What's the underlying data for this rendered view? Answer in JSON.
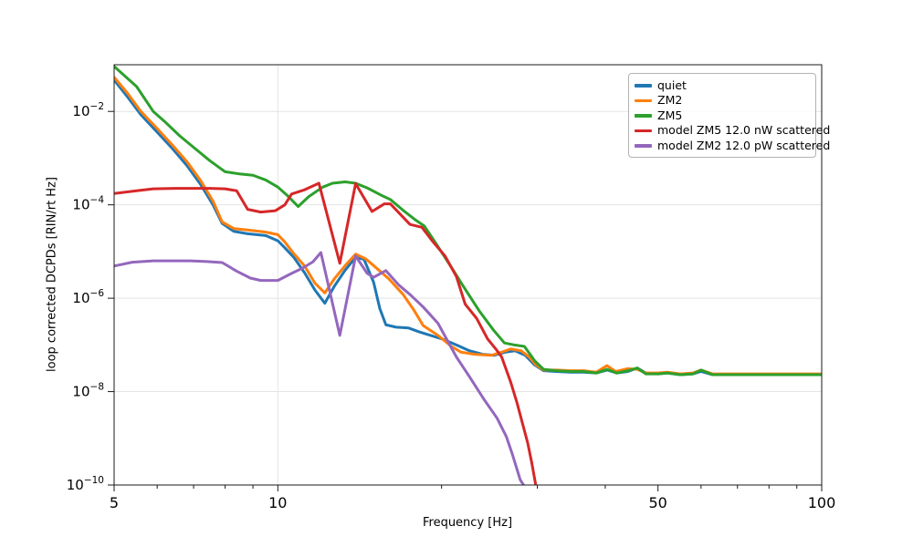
{
  "figure": {
    "xlabel": "Frequency [Hz]",
    "ylabel": "loop corrected DCPDs [RIN/rt Hz]"
  },
  "chart_data": {
    "type": "line",
    "title": "",
    "xlabel": "Frequency [Hz]",
    "ylabel": "loop corrected DCPDs [RIN/rt Hz]",
    "x_scale": "log",
    "y_scale": "log",
    "xlim": [
      5,
      100
    ],
    "ylim": [
      1e-10,
      0.1
    ],
    "x_major_ticks": [
      5,
      10,
      50,
      100
    ],
    "x_minor_ticks": [
      6,
      7,
      8,
      9,
      20,
      30,
      40,
      60,
      70,
      80,
      90
    ],
    "y_ticks": [
      {
        "base": "10",
        "exp": "−2",
        "value": 0.01
      },
      {
        "base": "10",
        "exp": "−4",
        "value": 0.0001
      },
      {
        "base": "10",
        "exp": "−6",
        "value": 1e-06
      },
      {
        "base": "10",
        "exp": "−8",
        "value": 1e-08
      },
      {
        "base": "10",
        "exp": "−10",
        "value": 1e-10
      }
    ],
    "grid": {
      "horizontal_at": [
        0.01,
        0.0001,
        1e-06,
        1e-08
      ],
      "vertical_at": [
        10
      ],
      "color": "#e4e4e4"
    },
    "legend_position": "upper right",
    "spine_color": "#1a1a1a",
    "series": [
      {
        "name": "quiet",
        "color": "#1f77b4",
        "linewidth": 3,
        "points": [
          [
            5.0,
            0.047
          ],
          [
            5.3,
            0.02
          ],
          [
            5.6,
            0.0085
          ],
          [
            6.0,
            0.0036
          ],
          [
            6.4,
            0.0016
          ],
          [
            6.8,
            0.0007
          ],
          [
            7.2,
            0.00028
          ],
          [
            7.6,
            0.0001
          ],
          [
            7.9,
            4e-05
          ],
          [
            8.3,
            2.7e-05
          ],
          [
            8.8,
            2.4e-05
          ],
          [
            9.5,
            2.2e-05
          ],
          [
            10.0,
            1.7e-05
          ],
          [
            10.3,
            1.2e-05
          ],
          [
            10.7,
            7.5e-06
          ],
          [
            11.2,
            3.5e-06
          ],
          [
            11.7,
            1.5e-06
          ],
          [
            12.2,
            7.8e-07
          ],
          [
            12.7,
            1.8e-06
          ],
          [
            13.3,
            4e-06
          ],
          [
            13.9,
            7.5e-06
          ],
          [
            14.4,
            6.8e-06
          ],
          [
            15.0,
            2.2e-06
          ],
          [
            15.4,
            6e-07
          ],
          [
            15.8,
            2.7e-07
          ],
          [
            16.5,
            2.4e-07
          ],
          [
            17.4,
            2.3e-07
          ],
          [
            18.2,
            1.9e-07
          ],
          [
            19.1,
            1.6e-07
          ],
          [
            20.2,
            1.3e-07
          ],
          [
            21.3,
            1e-07
          ],
          [
            22.5,
            7.5e-08
          ],
          [
            23.8,
            6.3e-08
          ],
          [
            25.0,
            6e-08
          ],
          [
            26.2,
            7e-08
          ],
          [
            27.3,
            7.5e-08
          ],
          [
            28.5,
            6e-08
          ],
          [
            29.6,
            3.8e-08
          ],
          [
            30.8,
            2.8e-08
          ],
          [
            32.5,
            2.7e-08
          ],
          [
            34.5,
            2.6e-08
          ],
          [
            36.5,
            2.6e-08
          ],
          [
            38.5,
            2.5e-08
          ],
          [
            40.3,
            2.9e-08
          ],
          [
            42.0,
            2.5e-08
          ],
          [
            44.0,
            2.7e-08
          ],
          [
            45.8,
            3.2e-08
          ],
          [
            47.5,
            2.5e-08
          ],
          [
            50.0,
            2.4e-08
          ],
          [
            52.0,
            2.5e-08
          ],
          [
            55.0,
            2.3e-08
          ],
          [
            58.0,
            2.4e-08
          ],
          [
            60.0,
            2.7e-08
          ],
          [
            63.0,
            2.3e-08
          ],
          [
            67.0,
            2.3e-08
          ],
          [
            72.0,
            2.3e-08
          ],
          [
            78.0,
            2.3e-08
          ],
          [
            85.0,
            2.3e-08
          ],
          [
            92.0,
            2.3e-08
          ],
          [
            100.0,
            2.3e-08
          ]
        ]
      },
      {
        "name": "ZM2",
        "color": "#ff7f0e",
        "linewidth": 3,
        "points": [
          [
            5.0,
            0.054
          ],
          [
            5.3,
            0.024
          ],
          [
            5.6,
            0.01
          ],
          [
            6.0,
            0.0043
          ],
          [
            6.4,
            0.0019
          ],
          [
            6.8,
            0.00085
          ],
          [
            7.2,
            0.00034
          ],
          [
            7.6,
            0.00012
          ],
          [
            7.9,
            4.3e-05
          ],
          [
            8.3,
            3.1e-05
          ],
          [
            8.8,
            2.9e-05
          ],
          [
            9.5,
            2.6e-05
          ],
          [
            10.0,
            2.3e-05
          ],
          [
            10.3,
            1.6e-05
          ],
          [
            10.7,
            9e-06
          ],
          [
            11.2,
            4.9e-06
          ],
          [
            11.7,
            2.1e-06
          ],
          [
            12.2,
            1.3e-06
          ],
          [
            12.7,
            2.6e-06
          ],
          [
            13.3,
            5e-06
          ],
          [
            13.9,
            8.8e-06
          ],
          [
            14.5,
            7e-06
          ],
          [
            15.0,
            5e-06
          ],
          [
            16.0,
            2.6e-06
          ],
          [
            17.0,
            1.2e-06
          ],
          [
            17.8,
            5.5e-07
          ],
          [
            18.5,
            2.6e-07
          ],
          [
            19.7,
            1.6e-07
          ],
          [
            20.8,
            9.5e-08
          ],
          [
            21.7,
            7e-08
          ],
          [
            23.0,
            6.3e-08
          ],
          [
            24.7,
            6e-08
          ],
          [
            25.8,
            7e-08
          ],
          [
            26.8,
            8.2e-08
          ],
          [
            28.0,
            7.5e-08
          ],
          [
            29.0,
            5.5e-08
          ],
          [
            29.8,
            3.8e-08
          ],
          [
            30.8,
            2.9e-08
          ],
          [
            32.5,
            2.9e-08
          ],
          [
            34.5,
            2.8e-08
          ],
          [
            36.5,
            2.8e-08
          ],
          [
            38.5,
            2.6e-08
          ],
          [
            40.3,
            3.6e-08
          ],
          [
            41.8,
            2.7e-08
          ],
          [
            44.0,
            3.1e-08
          ],
          [
            45.8,
            3e-08
          ],
          [
            47.5,
            2.5e-08
          ],
          [
            50.0,
            2.5e-08
          ],
          [
            52.0,
            2.6e-08
          ],
          [
            55.0,
            2.4e-08
          ],
          [
            58.0,
            2.5e-08
          ],
          [
            60.0,
            2.9e-08
          ],
          [
            63.0,
            2.4e-08
          ],
          [
            67.0,
            2.4e-08
          ],
          [
            72.0,
            2.4e-08
          ],
          [
            78.0,
            2.4e-08
          ],
          [
            85.0,
            2.4e-08
          ],
          [
            92.0,
            2.4e-08
          ],
          [
            100.0,
            2.4e-08
          ]
        ]
      },
      {
        "name": "ZM5",
        "color": "#2ca02c",
        "linewidth": 3,
        "points": [
          [
            5.0,
            0.092
          ],
          [
            5.5,
            0.034
          ],
          [
            5.9,
            0.01
          ],
          [
            6.2,
            0.006
          ],
          [
            6.6,
            0.003
          ],
          [
            7.0,
            0.0017
          ],
          [
            7.5,
            0.00088
          ],
          [
            8.0,
            0.00051
          ],
          [
            8.5,
            0.00046
          ],
          [
            9.0,
            0.00043
          ],
          [
            9.5,
            0.00034
          ],
          [
            10.0,
            0.00024
          ],
          [
            10.4,
            0.00016
          ],
          [
            10.9,
            9.2e-05
          ],
          [
            11.4,
            0.00015
          ],
          [
            12.1,
            0.00024
          ],
          [
            12.6,
            0.00029
          ],
          [
            13.3,
            0.00031
          ],
          [
            13.9,
            0.00029
          ],
          [
            14.6,
            0.00023
          ],
          [
            15.5,
            0.00016
          ],
          [
            16.1,
            0.00013
          ],
          [
            17.1,
            7.2e-05
          ],
          [
            17.8,
            5e-05
          ],
          [
            18.6,
            3.5e-05
          ],
          [
            19.6,
            1.4e-05
          ],
          [
            20.9,
            4.4e-06
          ],
          [
            22.0,
            1.7e-06
          ],
          [
            23.5,
            5.2e-07
          ],
          [
            24.9,
            2.1e-07
          ],
          [
            26.1,
            1.1e-07
          ],
          [
            27.2,
            1e-07
          ],
          [
            28.4,
            9.3e-08
          ],
          [
            29.7,
            4.5e-08
          ],
          [
            30.8,
            3e-08
          ],
          [
            32.5,
            2.8e-08
          ],
          [
            34.5,
            2.7e-08
          ],
          [
            36.5,
            2.7e-08
          ],
          [
            38.5,
            2.5e-08
          ],
          [
            40.3,
            3e-08
          ],
          [
            42.0,
            2.5e-08
          ],
          [
            44.0,
            2.8e-08
          ],
          [
            45.8,
            3.2e-08
          ],
          [
            47.5,
            2.4e-08
          ],
          [
            50.0,
            2.4e-08
          ],
          [
            52.0,
            2.5e-08
          ],
          [
            55.0,
            2.3e-08
          ],
          [
            58.0,
            2.4e-08
          ],
          [
            60.0,
            2.9e-08
          ],
          [
            63.0,
            2.3e-08
          ],
          [
            67.0,
            2.3e-08
          ],
          [
            72.0,
            2.3e-08
          ],
          [
            78.0,
            2.3e-08
          ],
          [
            85.0,
            2.3e-08
          ],
          [
            92.0,
            2.3e-08
          ],
          [
            100.0,
            2.3e-08
          ]
        ]
      },
      {
        "name": "model ZM5 12.0 nW scattered",
        "color": "#d62728",
        "linewidth": 3,
        "points": [
          [
            5.0,
            0.000175
          ],
          [
            5.5,
            0.0002
          ],
          [
            5.9,
            0.00022
          ],
          [
            6.5,
            0.000225
          ],
          [
            7.0,
            0.000225
          ],
          [
            7.5,
            0.000225
          ],
          [
            8.0,
            0.00022
          ],
          [
            8.4,
            0.0002
          ],
          [
            8.8,
            8e-05
          ],
          [
            9.3,
            7e-05
          ],
          [
            9.9,
            7.5e-05
          ],
          [
            10.3,
            0.0001
          ],
          [
            10.6,
            0.00017
          ],
          [
            11.2,
            0.00021
          ],
          [
            11.9,
            0.00029
          ],
          [
            13.0,
            5.6e-06
          ],
          [
            13.9,
            0.000285
          ],
          [
            14.9,
            7.2e-05
          ],
          [
            15.7,
            0.000105
          ],
          [
            16.1,
            0.000105
          ],
          [
            17.5,
            3.8e-05
          ],
          [
            18.4,
            3.3e-05
          ],
          [
            19.3,
            1.6e-05
          ],
          [
            20.3,
            8e-06
          ],
          [
            21.3,
            2.9e-06
          ],
          [
            22.1,
            7.5e-07
          ],
          [
            23.2,
            3.7e-07
          ],
          [
            24.3,
            1.35e-07
          ],
          [
            25.2,
            8e-08
          ],
          [
            25.8,
            5.5e-08
          ],
          [
            26.8,
            1.6e-08
          ],
          [
            27.5,
            6e-09
          ],
          [
            28.2,
            2e-09
          ],
          [
            28.8,
            8e-10
          ],
          [
            29.3,
            3e-10
          ],
          [
            29.8,
            1e-10
          ]
        ]
      },
      {
        "name": "model ZM2 12.0 pW scattered",
        "color": "#9467bd",
        "linewidth": 3,
        "points": [
          [
            5.0,
            4.9e-06
          ],
          [
            5.4,
            5.9e-06
          ],
          [
            5.9,
            6.3e-06
          ],
          [
            6.3,
            6.3e-06
          ],
          [
            6.9,
            6.3e-06
          ],
          [
            7.4,
            6.1e-06
          ],
          [
            7.9,
            5.8e-06
          ],
          [
            8.4,
            3.8e-06
          ],
          [
            8.9,
            2.7e-06
          ],
          [
            9.3,
            2.4e-06
          ],
          [
            10.0,
            2.4e-06
          ],
          [
            10.6,
            3.4e-06
          ],
          [
            11.1,
            4.4e-06
          ],
          [
            11.6,
            6e-06
          ],
          [
            12.0,
            9.5e-06
          ],
          [
            13.0,
            1.6e-07
          ],
          [
            13.9,
            8e-06
          ],
          [
            14.6,
            3.4e-06
          ],
          [
            15.0,
            2.8e-06
          ],
          [
            15.8,
            3.9e-06
          ],
          [
            16.7,
            1.9e-06
          ],
          [
            17.5,
            1.2e-06
          ],
          [
            18.5,
            6.5e-07
          ],
          [
            19.7,
            2.9e-07
          ],
          [
            21.3,
            5.5e-08
          ],
          [
            22.5,
            2.1e-08
          ],
          [
            23.9,
            7e-09
          ],
          [
            25.3,
            2.7e-09
          ],
          [
            26.3,
            1.1e-09
          ],
          [
            27.0,
            4.5e-10
          ],
          [
            27.9,
            1.3e-10
          ],
          [
            28.3,
            1e-10
          ]
        ]
      }
    ]
  },
  "legend": {
    "items": [
      {
        "label": "quiet",
        "color": "#1f77b4"
      },
      {
        "label": "ZM2",
        "color": "#ff7f0e"
      },
      {
        "label": "ZM5",
        "color": "#2ca02c"
      },
      {
        "label": "model ZM5 12.0 nW scattered",
        "color": "#d62728"
      },
      {
        "label": "model ZM2 12.0 pW scattered",
        "color": "#9467bd"
      }
    ]
  }
}
